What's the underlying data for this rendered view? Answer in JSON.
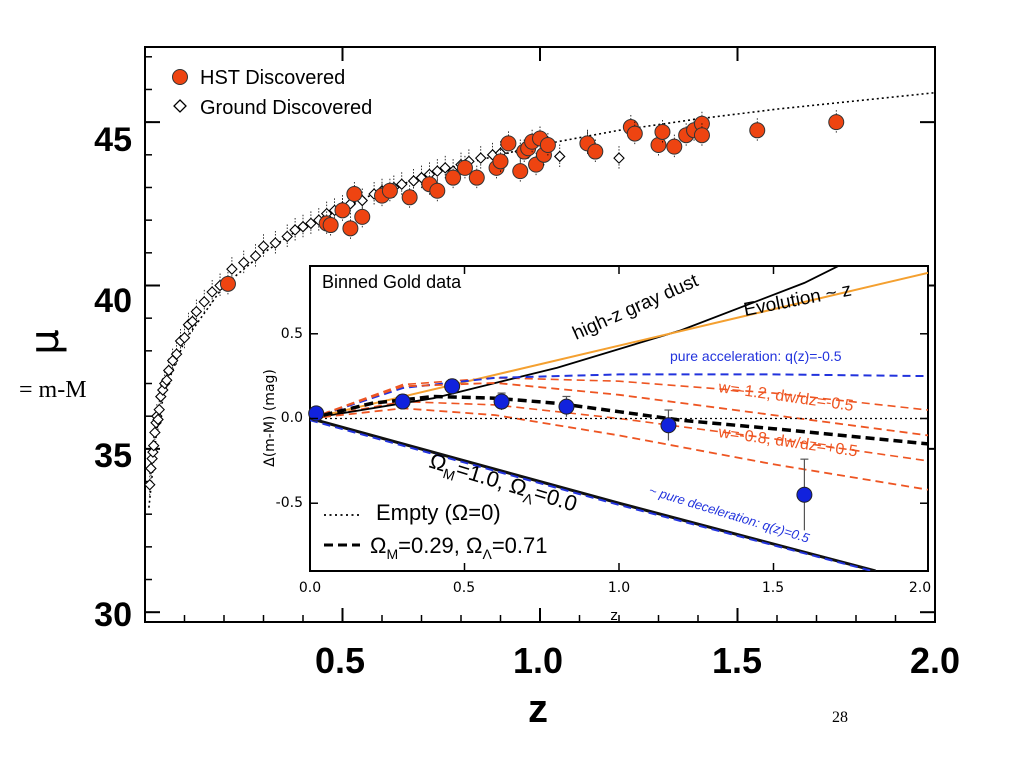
{
  "slide": {
    "ylabel_symbol": "μ",
    "ylabel_def": "= m-M",
    "page_number": "28"
  },
  "chart_data": [
    {
      "type": "scatter",
      "xlabel": "z",
      "ylabel": "μ",
      "xlim": [
        0.0,
        2.0
      ],
      "ylim": [
        29.7,
        47.3
      ],
      "x_ticks": [
        "0.5",
        "1.0",
        "1.5",
        "2.0"
      ],
      "y_ticks": [
        "30",
        "35",
        "40",
        "45"
      ],
      "legend": {
        "placement": "top-left",
        "entries": [
          "HST Discovered",
          "Ground Discovered"
        ]
      },
      "colors": {
        "hst": "#ee4411",
        "ground": "#ffffff",
        "model": "#000000"
      },
      "model_curve": {
        "name": "",
        "x": [
          0.01,
          0.03,
          0.05,
          0.1,
          0.2,
          0.3,
          0.4,
          0.5,
          0.6,
          0.7,
          0.8,
          0.9,
          1.0,
          1.2,
          1.4,
          1.6,
          1.8,
          2.0
        ],
        "y": [
          33.2,
          35.6,
          36.8,
          38.3,
          40.0,
          41.0,
          41.8,
          42.4,
          42.9,
          43.3,
          43.7,
          44.0,
          44.3,
          44.75,
          45.1,
          45.4,
          45.65,
          45.9
        ]
      },
      "series": [
        {
          "name": "HST Discovered",
          "x": [
            0.21,
            0.46,
            0.47,
            0.5,
            0.52,
            0.53,
            0.55,
            0.6,
            0.62,
            0.67,
            0.72,
            0.74,
            0.78,
            0.81,
            0.84,
            0.89,
            0.9,
            0.92,
            0.95,
            0.96,
            0.97,
            0.98,
            0.99,
            1.0,
            1.01,
            1.02,
            1.12,
            1.14,
            1.23,
            1.24,
            1.3,
            1.31,
            1.34,
            1.37,
            1.39,
            1.41,
            1.41,
            1.55,
            1.75
          ],
          "y": [
            40.05,
            41.9,
            41.85,
            42.3,
            41.75,
            42.8,
            42.1,
            42.75,
            42.9,
            42.7,
            43.1,
            42.9,
            43.3,
            43.6,
            43.3,
            43.6,
            43.8,
            44.35,
            43.5,
            44.1,
            44.2,
            44.4,
            43.7,
            44.5,
            44.0,
            44.3,
            44.35,
            44.1,
            44.85,
            44.65,
            44.3,
            44.7,
            44.25,
            44.6,
            44.75,
            44.95,
            44.6,
            44.75,
            45.0
          ]
        },
        {
          "name": "Ground Discovered",
          "x": [
            0.012,
            0.015,
            0.018,
            0.02,
            0.022,
            0.025,
            0.028,
            0.03,
            0.033,
            0.036,
            0.04,
            0.045,
            0.05,
            0.055,
            0.06,
            0.07,
            0.08,
            0.09,
            0.1,
            0.11,
            0.12,
            0.13,
            0.15,
            0.17,
            0.19,
            0.22,
            0.25,
            0.28,
            0.3,
            0.33,
            0.36,
            0.38,
            0.4,
            0.42,
            0.44,
            0.46,
            0.48,
            0.5,
            0.52,
            0.55,
            0.58,
            0.6,
            0.63,
            0.65,
            0.68,
            0.7,
            0.72,
            0.74,
            0.76,
            0.78,
            0.8,
            0.82,
            0.85,
            0.88,
            0.9,
            0.95,
            1.05,
            1.12,
            1.2
          ],
          "y": [
            33.9,
            34.4,
            34.7,
            34.9,
            35.1,
            35.5,
            35.8,
            36.0,
            35.9,
            36.2,
            36.6,
            36.8,
            37.0,
            37.1,
            37.4,
            37.7,
            37.9,
            38.3,
            38.4,
            38.8,
            38.9,
            39.2,
            39.5,
            39.8,
            40.0,
            40.5,
            40.7,
            40.9,
            41.2,
            41.3,
            41.5,
            41.7,
            41.8,
            41.9,
            42.0,
            42.2,
            42.3,
            42.4,
            42.5,
            42.6,
            42.8,
            42.9,
            43.0,
            43.1,
            43.2,
            43.3,
            43.4,
            43.5,
            43.6,
            43.5,
            43.7,
            43.8,
            43.9,
            44.0,
            44.05,
            44.1,
            43.95,
            44.4,
            43.9
          ]
        }
      ]
    },
    {
      "type": "scatter",
      "title": "Binned Gold data",
      "xlabel": "z",
      "ylabel": "Δ(m-M) (mag)",
      "xlim": [
        0.0,
        2.0
      ],
      "ylim": [
        -0.9,
        0.9
      ],
      "x_ticks": [
        "0.0",
        "0.5",
        "1.0",
        "1.5",
        "2.0"
      ],
      "y_ticks": [
        "0.5",
        "0.0",
        "-0.5"
      ],
      "colors": {
        "points": "#1122dd",
        "dust": "#000000",
        "evolution": "#f4a030",
        "acceleration": "#2233dd",
        "w_models": "#ee5522",
        "lcdm": "#000000",
        "empty": "#000000"
      },
      "binned_points": {
        "x": [
          0.02,
          0.3,
          0.46,
          0.62,
          0.83,
          1.16,
          1.6
        ],
        "y": [
          0.03,
          0.1,
          0.19,
          0.1,
          0.07,
          -0.04,
          -0.45
        ],
        "err": [
          0.03,
          0.04,
          0.04,
          0.05,
          0.06,
          0.09,
          0.21
        ]
      },
      "curves": [
        {
          "name": "high-z gray dust",
          "x": [
            0.0,
            0.4,
            0.8,
            1.2,
            1.6,
            1.82
          ],
          "y": [
            0.0,
            0.12,
            0.3,
            0.52,
            0.8,
            1.0
          ]
        },
        {
          "name": "Evolution ~ z",
          "x": [
            0.0,
            2.0
          ],
          "y": [
            0.0,
            0.86
          ]
        },
        {
          "name": "pure acceleration: q(z)=-0.5",
          "x": [
            0.0,
            0.3,
            0.6,
            1.0,
            1.5,
            2.0
          ],
          "y": [
            0.0,
            0.18,
            0.24,
            0.26,
            0.26,
            0.25
          ]
        },
        {
          "name": "w=-1.2, dw/dz=-0.5",
          "x": [
            0.0,
            0.3,
            0.6,
            1.0,
            1.5,
            2.0
          ],
          "y": [
            0.0,
            0.19,
            0.21,
            0.14,
            0.02,
            -0.1
          ]
        },
        {
          "name": "w=-0.8, dw/dz=+0.5",
          "x": [
            0.0,
            0.3,
            0.6,
            1.0,
            1.5,
            2.0
          ],
          "y": [
            0.0,
            0.06,
            0.02,
            -0.1,
            -0.27,
            -0.42
          ]
        },
        {
          "name": "Ω_M=0.29, Ω_Λ=0.71",
          "x": [
            0.0,
            0.2,
            0.4,
            0.6,
            0.8,
            1.0,
            1.2,
            1.5,
            2.0
          ],
          "y": [
            0.0,
            0.09,
            0.13,
            0.12,
            0.09,
            0.04,
            -0.01,
            -0.06,
            -0.15
          ]
        },
        {
          "name": "Ω_M=1.0, Ω_Λ=0.0",
          "x": [
            0.0,
            1.0,
            1.83
          ],
          "y": [
            0.0,
            -0.5,
            -0.9
          ]
        },
        {
          "name": "pure deceleration: q(z)=0.5",
          "x": [
            0.0,
            1.0,
            1.84
          ],
          "y": [
            -0.01,
            -0.51,
            -0.91
          ]
        },
        {
          "name": "Empty (Ω=0)",
          "x": [
            0.0,
            2.0
          ],
          "y": [
            0.0,
            0.0
          ]
        }
      ],
      "annotations": {
        "dust": "high-z gray dust",
        "evolution": "Evolution ~ z",
        "acceleration": "pure acceleration: q(z)=-0.5",
        "w1": "w=-1.2, dw/dz=-0.5",
        "w2": "w=-0.8, dw/dz=+0.5",
        "omega_m1": "Ω",
        "omega_m1_sub": "M",
        "omega_m1_val": "=1.0, ",
        "omega_l1": "Ω",
        "omega_l1_sub": "Λ",
        "omega_l1_val": "=0.0",
        "deceleration": "~ pure deceleration: q(z)=0.5"
      },
      "legend": {
        "placement": "bottom-left",
        "empty_label": "Empty (Ω=0)",
        "lcdm_omega_m": "Ω",
        "lcdm_sub_m": "M",
        "lcdm_val_m": "=0.29, ",
        "lcdm_omega_l": "Ω",
        "lcdm_sub_l": "Λ",
        "lcdm_val_l": "=0.71"
      }
    }
  ]
}
